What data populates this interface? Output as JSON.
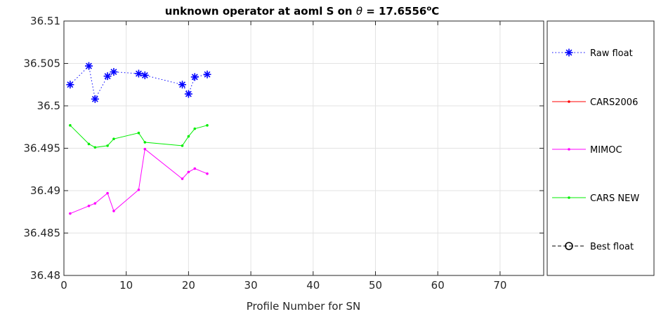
{
  "chart_data": {
    "type": "line",
    "title_main": "unknown operator  at aoml S on ",
    "title_theta": "θ",
    "title_value": " = 17.6556",
    "title_deg": "o",
    "title_unit": "C",
    "xlabel": "Profile Number for SN",
    "ylabel": "",
    "xlim": [
      0,
      77
    ],
    "ylim": [
      36.48,
      36.51
    ],
    "x_ticks": [
      0,
      10,
      20,
      30,
      40,
      50,
      60,
      70
    ],
    "x_tick_labels": [
      "0",
      "10",
      "20",
      "30",
      "40",
      "50",
      "60",
      "70"
    ],
    "y_ticks": [
      36.48,
      36.485,
      36.49,
      36.495,
      36.5,
      36.505,
      36.51
    ],
    "y_tick_labels": [
      "36.48",
      "36.485",
      "36.49",
      "36.495",
      "36.5",
      "36.505",
      "36.51"
    ],
    "grid": true,
    "legend_position": "right",
    "series": [
      {
        "name": "Raw float",
        "color": "#0000ff",
        "line_style": "dotted",
        "marker": "asterisk",
        "x": [
          1,
          4,
          5,
          7,
          8,
          12,
          13,
          19,
          20,
          21,
          23
        ],
        "y": [
          36.5025,
          36.5047,
          36.5008,
          36.5035,
          36.504,
          36.5038,
          36.5036,
          36.5025,
          36.5014,
          36.5034,
          36.5037
        ]
      },
      {
        "name": "CARS2006",
        "color": "#ff0000",
        "line_style": "solid",
        "marker": "dot",
        "x": [],
        "y": []
      },
      {
        "name": "MIMOC",
        "color": "#ff00ff",
        "line_style": "solid",
        "marker": "dot",
        "x": [
          1,
          4,
          5,
          7,
          8,
          12,
          13,
          19,
          20,
          21,
          23
        ],
        "y": [
          36.4873,
          36.4882,
          36.4885,
          36.4897,
          36.4876,
          36.4901,
          36.4949,
          36.4914,
          36.4922,
          36.4926,
          36.492
        ]
      },
      {
        "name": "CARS NEW",
        "color": "#00ee00",
        "line_style": "solid",
        "marker": "dot",
        "x": [
          1,
          4,
          5,
          7,
          8,
          12,
          13,
          19,
          20,
          21,
          23
        ],
        "y": [
          36.4977,
          36.4955,
          36.4951,
          36.4953,
          36.4961,
          36.4968,
          36.4957,
          36.4953,
          36.4964,
          36.4973,
          36.4977
        ]
      },
      {
        "name": "Best float",
        "color": "#000000",
        "line_style": "dashed",
        "marker": "circle",
        "x": [],
        "y": []
      }
    ]
  }
}
